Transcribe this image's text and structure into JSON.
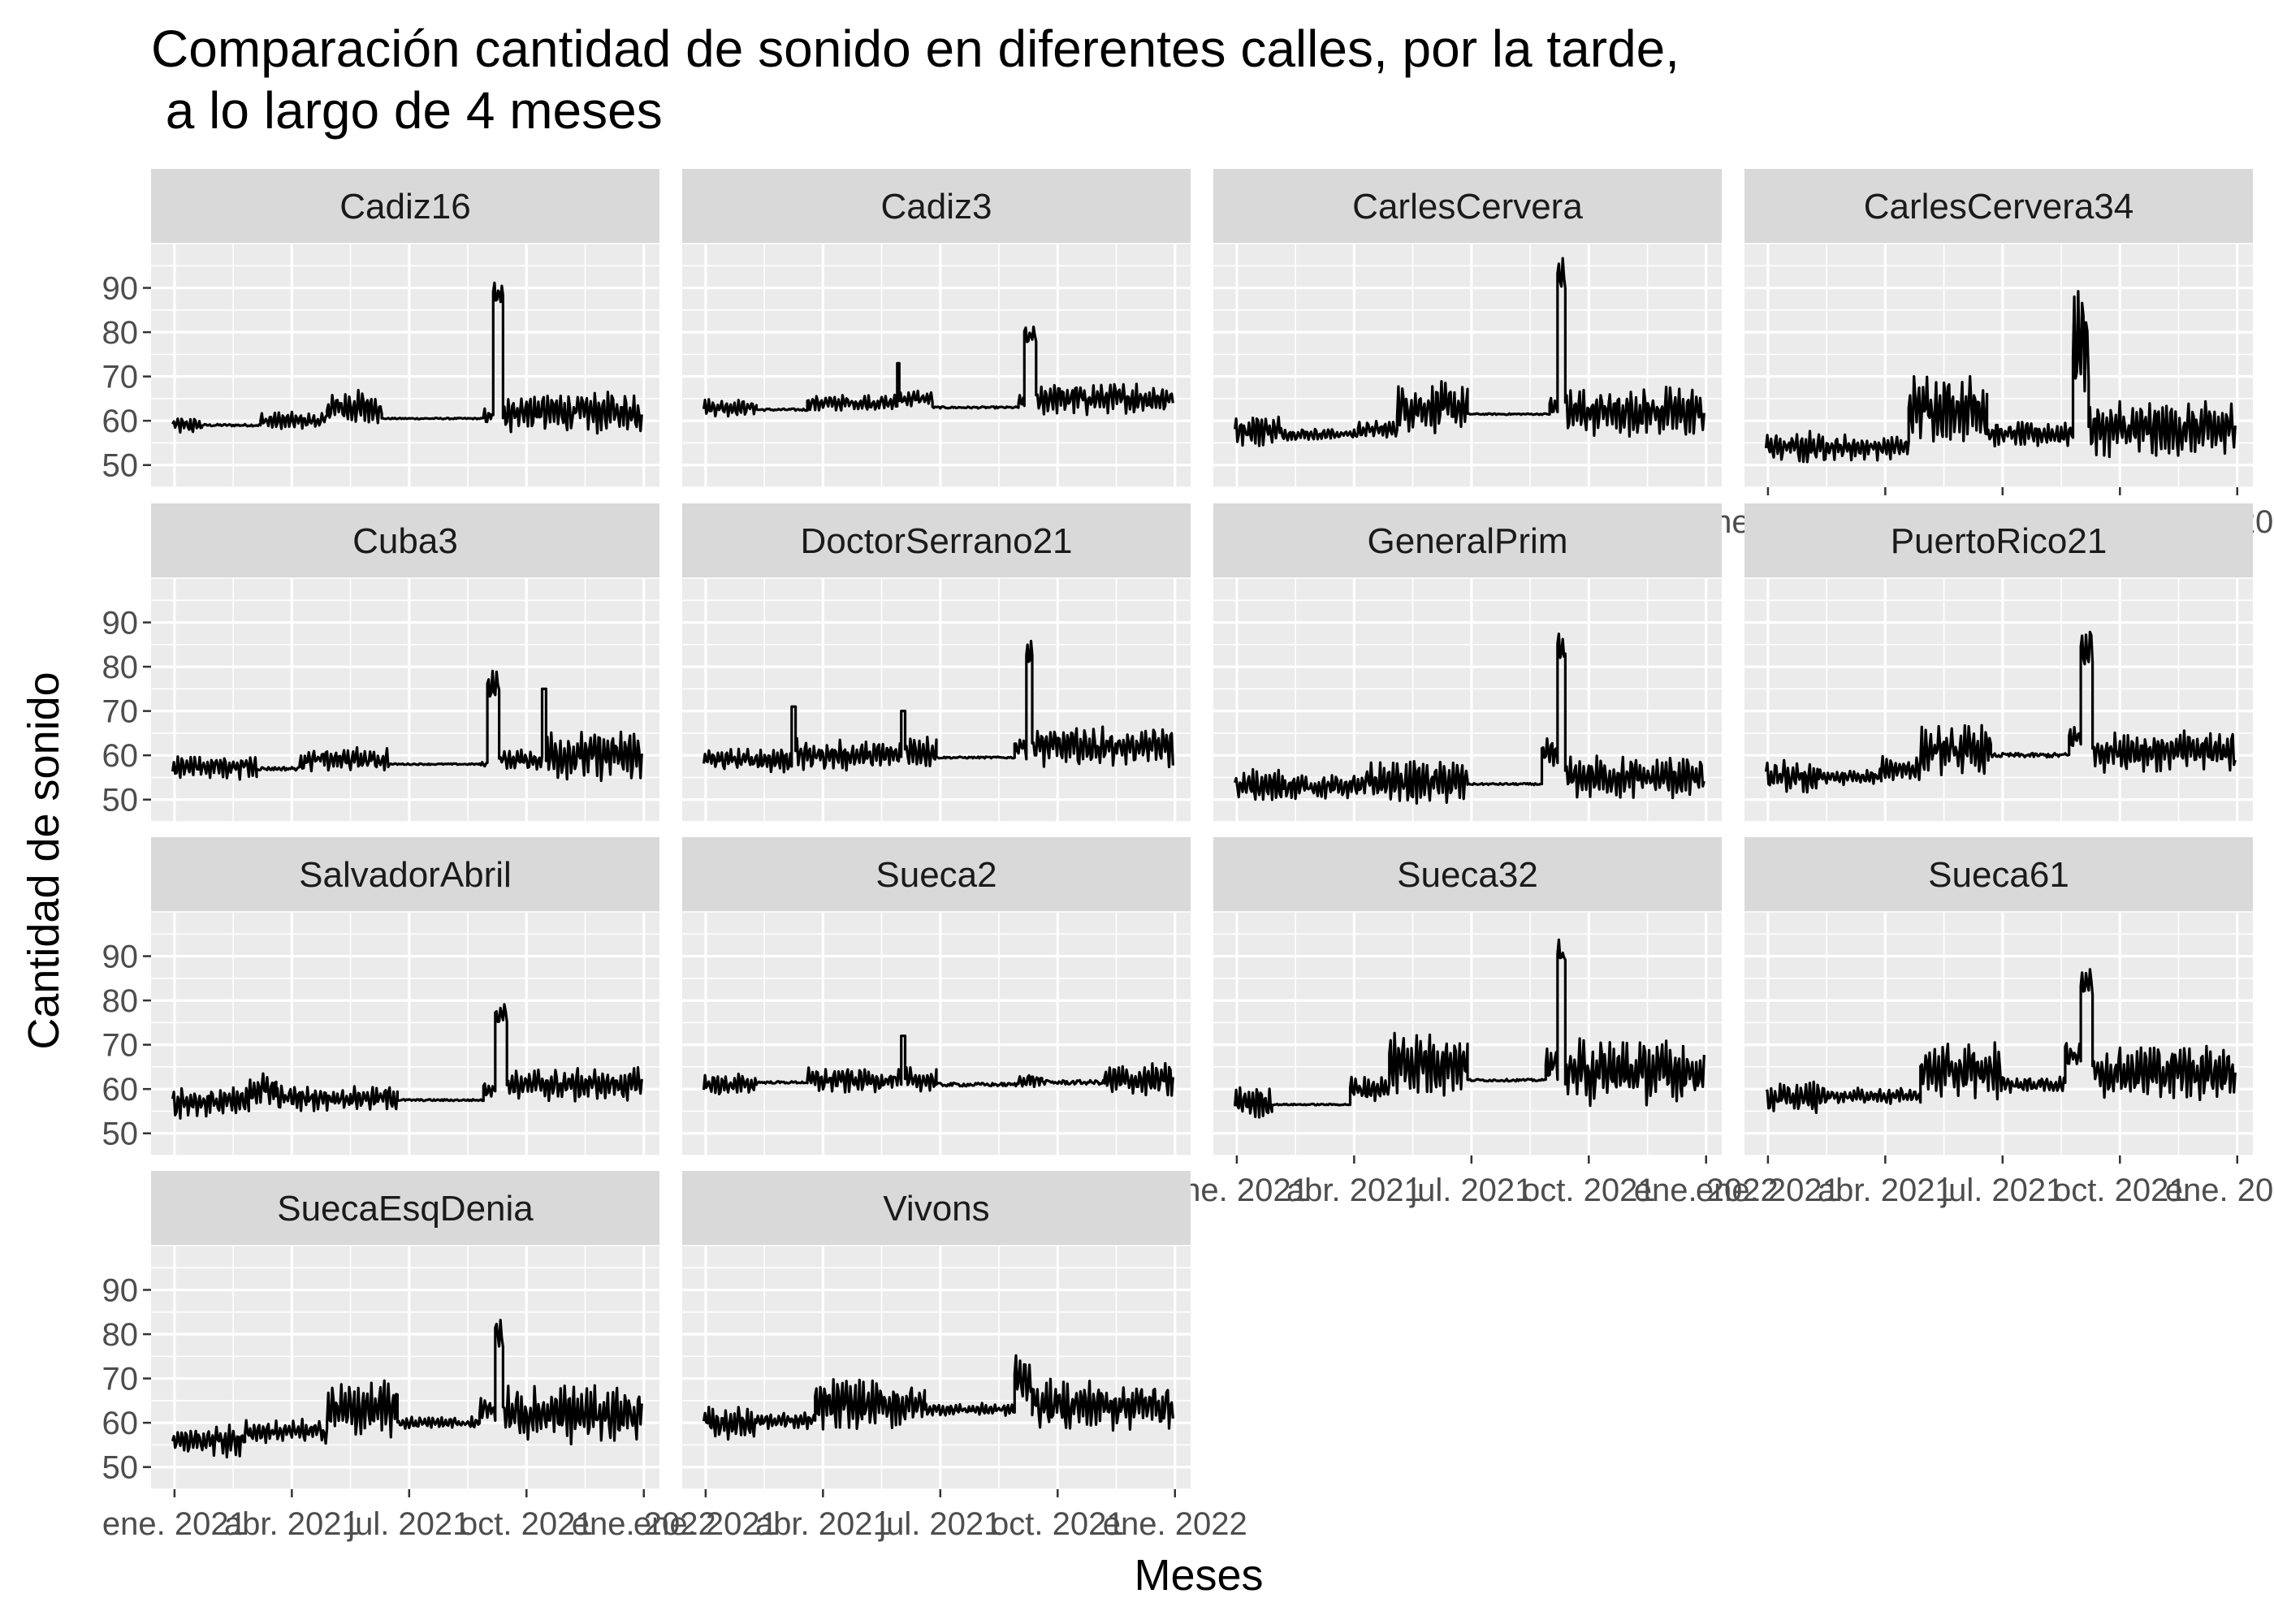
{
  "chart_data": {
    "type": "line",
    "title": "Comparación cantidad de sonido en diferentes calles, por la tarde,",
    "title_line2": " a lo largo de 4 meses",
    "xlabel": "Meses",
    "ylabel": "Cantidad de sonido",
    "x_ticks": [
      "ene. 2021",
      "abr. 2021",
      "jul. 2021",
      "oct. 2021",
      "ene. 2022"
    ],
    "x_tick_months": [
      0,
      3,
      6,
      9,
      12
    ],
    "xlim_months": [
      -0.6,
      12.4
    ],
    "y_ticks": [
      50,
      60,
      70,
      80,
      90
    ],
    "ylim": [
      45,
      100
    ],
    "panel_background": "#ebebeb",
    "strip_background": "#d9d9d9",
    "grid_color": "#ffffff",
    "line_color": "#000000",
    "series": [
      {
        "name": "Cadiz16",
        "row": 0,
        "col": 0,
        "x_axis_shown": false,
        "segments": [
          [
            -0.05,
            0.7,
            59,
            2
          ],
          [
            0.7,
            2.2,
            59,
            0.5
          ],
          [
            2.2,
            3.9,
            60,
            2
          ],
          [
            3.9,
            5.3,
            63,
            4
          ],
          [
            5.3,
            7.9,
            60.5,
            0.3
          ],
          [
            7.9,
            8.15,
            61,
            2
          ],
          [
            8.15,
            8.4,
            88,
            4
          ],
          [
            8.4,
            11.95,
            62,
            5
          ]
        ]
      },
      {
        "name": "Cadiz3",
        "row": 0,
        "col": 1,
        "x_axis_shown": false,
        "segments": [
          [
            -0.05,
            1.3,
            63,
            2
          ],
          [
            1.3,
            2.6,
            62.5,
            0.5
          ],
          [
            2.6,
            4.9,
            64,
            2
          ],
          [
            4.9,
            4.95,
            73,
            0
          ],
          [
            4.95,
            5.8,
            65,
            2
          ],
          [
            5.8,
            8.0,
            63,
            0.4
          ],
          [
            8.0,
            8.15,
            64,
            2
          ],
          [
            8.15,
            8.45,
            79,
            3
          ],
          [
            8.45,
            11.95,
            65,
            4
          ]
        ]
      },
      {
        "name": "CarlesCervera",
        "row": 0,
        "col": 2,
        "x_axis_shown": false,
        "segments": [
          [
            -0.05,
            1.1,
            58,
            4
          ],
          [
            1.1,
            3.1,
            57,
            1.5
          ],
          [
            3.1,
            4.1,
            58,
            2
          ],
          [
            4.1,
            5.9,
            63,
            6
          ],
          [
            5.9,
            8.0,
            61.5,
            0.3
          ],
          [
            8.0,
            8.2,
            63,
            3
          ],
          [
            8.2,
            8.4,
            93,
            4
          ],
          [
            8.4,
            11.95,
            62,
            6
          ]
        ]
      },
      {
        "name": "CarlesCervera34",
        "row": 0,
        "col": 3,
        "x_axis_shown": true,
        "segments": [
          [
            -0.05,
            1.5,
            54,
            4
          ],
          [
            1.5,
            3.6,
            54,
            3
          ],
          [
            3.6,
            5.6,
            63,
            8
          ],
          [
            5.6,
            7.8,
            57,
            3
          ],
          [
            7.8,
            8.2,
            78,
            12
          ],
          [
            8.2,
            11.95,
            58,
            7
          ]
        ]
      },
      {
        "name": "Cuba3",
        "row": 1,
        "col": 0,
        "x_axis_shown": false,
        "segments": [
          [
            -0.05,
            2.1,
            57.5,
            3
          ],
          [
            2.1,
            3.2,
            57,
            0.8
          ],
          [
            3.2,
            5.5,
            59,
            3
          ],
          [
            5.5,
            7.8,
            58,
            0.3
          ],
          [
            7.8,
            8.0,
            58,
            1
          ],
          [
            8.0,
            8.3,
            76,
            4
          ],
          [
            8.3,
            9.4,
            59,
            3
          ],
          [
            9.4,
            9.5,
            75,
            0
          ],
          [
            9.5,
            11.95,
            60,
            6
          ]
        ]
      },
      {
        "name": "DoctorSerrano21",
        "row": 1,
        "col": 1,
        "x_axis_shown": false,
        "segments": [
          [
            -0.05,
            2.2,
            59,
            3
          ],
          [
            2.2,
            2.3,
            71,
            0
          ],
          [
            2.3,
            5.0,
            60,
            4
          ],
          [
            5.0,
            5.1,
            70,
            0
          ],
          [
            5.1,
            5.9,
            61,
            4
          ],
          [
            5.9,
            7.9,
            59.5,
            0.4
          ],
          [
            7.9,
            8.2,
            62,
            3
          ],
          [
            8.2,
            8.35,
            83,
            3
          ],
          [
            8.35,
            11.95,
            62,
            5
          ]
        ]
      },
      {
        "name": "GeneralPrim",
        "row": 1,
        "col": 2,
        "x_axis_shown": false,
        "segments": [
          [
            -0.05,
            1.2,
            53,
            4
          ],
          [
            1.2,
            3.3,
            53,
            3
          ],
          [
            3.3,
            5.9,
            54,
            5
          ],
          [
            5.9,
            7.8,
            53.5,
            0.4
          ],
          [
            7.8,
            8.2,
            60,
            4
          ],
          [
            8.2,
            8.4,
            84,
            4
          ],
          [
            8.4,
            11.95,
            55,
            5
          ]
        ]
      },
      {
        "name": "PuertoRico21",
        "row": 1,
        "col": 3,
        "x_axis_shown": false,
        "segments": [
          [
            -0.05,
            1.3,
            55,
            4
          ],
          [
            1.3,
            2.9,
            55,
            2
          ],
          [
            2.9,
            3.9,
            57,
            3
          ],
          [
            3.9,
            5.7,
            61,
            6
          ],
          [
            5.7,
            7.7,
            60,
            1
          ],
          [
            7.7,
            8.0,
            64,
            3
          ],
          [
            8.0,
            8.3,
            84,
            6
          ],
          [
            8.3,
            11.95,
            61,
            5
          ]
        ]
      },
      {
        "name": "SalvadorAbril",
        "row": 2,
        "col": 0,
        "x_axis_shown": false,
        "segments": [
          [
            -0.05,
            1.9,
            57,
            4
          ],
          [
            1.9,
            2.6,
            60,
            4
          ],
          [
            2.6,
            5.7,
            58,
            3
          ],
          [
            5.7,
            7.9,
            57.5,
            0.4
          ],
          [
            7.9,
            8.2,
            60,
            2
          ],
          [
            8.2,
            8.5,
            77,
            3
          ],
          [
            8.5,
            11.95,
            61,
            4
          ]
        ]
      },
      {
        "name": "Sueca2",
        "row": 2,
        "col": 1,
        "x_axis_shown": false,
        "segments": [
          [
            -0.05,
            1.3,
            61,
            3
          ],
          [
            1.3,
            2.6,
            61.5,
            0.5
          ],
          [
            2.6,
            5.0,
            62,
            3
          ],
          [
            5.0,
            5.1,
            72,
            0
          ],
          [
            5.1,
            5.9,
            62,
            3
          ],
          [
            5.9,
            8.0,
            61,
            0.8
          ],
          [
            8.0,
            8.6,
            62,
            2
          ],
          [
            8.6,
            10.2,
            61.5,
            1
          ],
          [
            10.2,
            11.95,
            62,
            4
          ]
        ]
      },
      {
        "name": "Sueca32",
        "row": 2,
        "col": 2,
        "x_axis_shown": true,
        "segments": [
          [
            -0.05,
            0.9,
            57,
            4
          ],
          [
            0.9,
            2.9,
            56.5,
            0.3
          ],
          [
            2.9,
            3.9,
            60,
            3
          ],
          [
            3.9,
            5.9,
            66,
            8
          ],
          [
            5.9,
            7.9,
            62,
            0.5
          ],
          [
            7.9,
            8.2,
            66,
            4
          ],
          [
            8.2,
            8.4,
            90,
            4
          ],
          [
            8.4,
            11.95,
            64,
            8
          ]
        ]
      },
      {
        "name": "Sueca61",
        "row": 2,
        "col": 3,
        "x_axis_shown": true,
        "segments": [
          [
            -0.05,
            1.4,
            58,
            4
          ],
          [
            1.4,
            3.9,
            58.5,
            2
          ],
          [
            3.9,
            6.0,
            64,
            7
          ],
          [
            6.0,
            7.6,
            61,
            2
          ],
          [
            7.6,
            8.0,
            68,
            4
          ],
          [
            8.0,
            8.3,
            84,
            4
          ],
          [
            8.3,
            11.95,
            64,
            7
          ]
        ]
      },
      {
        "name": "SuecaEsqDenia",
        "row": 3,
        "col": 0,
        "x_axis_shown": true,
        "segments": [
          [
            -0.05,
            1.8,
            56,
            4
          ],
          [
            1.8,
            3.9,
            58,
            3
          ],
          [
            3.9,
            5.7,
            63,
            7
          ],
          [
            5.7,
            7.8,
            60,
            1.5
          ],
          [
            7.8,
            8.2,
            63,
            3
          ],
          [
            8.2,
            8.4,
            80,
            4
          ],
          [
            8.4,
            11.95,
            62,
            7
          ]
        ]
      },
      {
        "name": "Vivons",
        "row": 3,
        "col": 1,
        "x_axis_shown": true,
        "segments": [
          [
            -0.05,
            1.3,
            60,
            4
          ],
          [
            1.3,
            2.8,
            60.5,
            2
          ],
          [
            2.8,
            5.6,
            64,
            6
          ],
          [
            5.6,
            7.9,
            63,
            1.5
          ],
          [
            7.9,
            8.35,
            70,
            6
          ],
          [
            8.35,
            11.95,
            64,
            6
          ]
        ]
      }
    ]
  }
}
